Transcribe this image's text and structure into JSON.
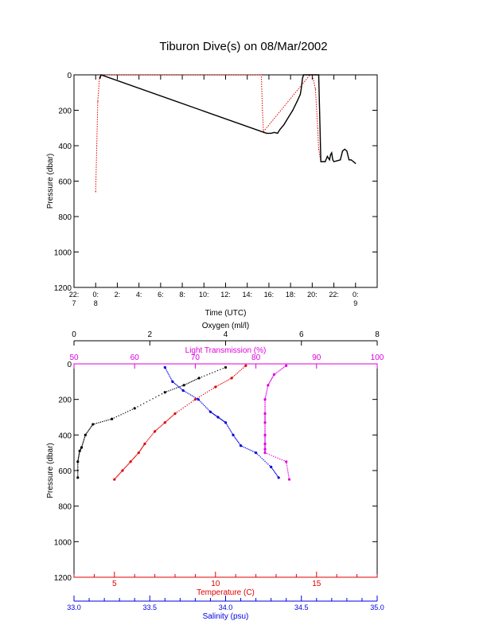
{
  "title": "Tiburon Dive(s) on 08/Mar/2002",
  "colors": {
    "axis": "#000000",
    "red": "#e00000",
    "blue": "#0000e0",
    "magenta": "#e000e0",
    "black": "#000000"
  },
  "chart_data": [
    {
      "type": "line",
      "title": "Tiburon Dive(s) on 08/Mar/2002",
      "xlabel": "Time (UTC)",
      "ylabel": "Pressure (dbar)",
      "xlim": [
        -2,
        26
      ],
      "ylim": [
        1200,
        0
      ],
      "xticks": [
        {
          "v": -2,
          "line1": "22:",
          "line2": "7"
        },
        {
          "v": 0,
          "line1": "0:",
          "line2": "8"
        },
        {
          "v": 2,
          "line1": "2:",
          "line2": ""
        },
        {
          "v": 4,
          "line1": "4:",
          "line2": ""
        },
        {
          "v": 6,
          "line1": "6:",
          "line2": ""
        },
        {
          "v": 8,
          "line1": "8:",
          "line2": ""
        },
        {
          "v": 10,
          "line1": "10:",
          "line2": ""
        },
        {
          "v": 12,
          "line1": "12:",
          "line2": ""
        },
        {
          "v": 14,
          "line1": "14:",
          "line2": ""
        },
        {
          "v": 16,
          "line1": "16:",
          "line2": ""
        },
        {
          "v": 18,
          "line1": "18:",
          "line2": ""
        },
        {
          "v": 20,
          "line1": "20:",
          "line2": ""
        },
        {
          "v": 22,
          "line1": "22:",
          "line2": ""
        },
        {
          "v": 24,
          "line1": "0:",
          "line2": "9"
        }
      ],
      "yticks": [
        0,
        200,
        400,
        600,
        800,
        1000,
        1200
      ],
      "series": [
        {
          "color": "red",
          "style": "dotted",
          "x": [
            0.0,
            0.1,
            0.2,
            0.35,
            0.5,
            4.0,
            8.0,
            12.0,
            15.0,
            15.3,
            15.4,
            15.5,
            19.8,
            20.0,
            20.3,
            20.5,
            20.6,
            20.8
          ],
          "y": [
            660,
            400,
            150,
            15,
            0,
            0,
            0,
            0,
            0,
            0,
            200,
            320,
            0,
            0,
            80,
            300,
            420,
            490
          ]
        },
        {
          "color": "black",
          "style": "solid",
          "x": [
            0.4,
            0.45,
            0.5,
            15.55,
            15.8,
            16.2,
            16.5,
            16.8,
            17.0,
            17.4,
            17.8,
            18.2,
            18.6,
            18.9,
            19.0,
            19.1,
            19.2,
            19.5,
            19.8,
            20.0,
            20.3,
            20.6,
            20.8,
            21.0,
            21.2,
            21.4,
            21.6,
            21.7,
            21.8,
            21.9,
            22.0,
            22.3,
            22.6,
            22.8,
            23.0,
            23.2,
            23.4,
            23.6,
            23.8,
            24.0
          ],
          "y": [
            20,
            10,
            0,
            325,
            330,
            330,
            325,
            330,
            310,
            280,
            240,
            200,
            150,
            110,
            70,
            20,
            0,
            0,
            0,
            0,
            0,
            0,
            490,
            490,
            490,
            460,
            480,
            450,
            440,
            480,
            490,
            485,
            480,
            430,
            420,
            430,
            480,
            480,
            490,
            500
          ]
        }
      ]
    },
    {
      "type": "scatter",
      "ylabel": "Pressure (dbar)",
      "ylim": [
        1200,
        0
      ],
      "yticks": [
        0,
        200,
        400,
        600,
        800,
        1000,
        1200
      ],
      "x_axes": {
        "oxygen": {
          "label": "Oxygen (ml/l)",
          "range": [
            0,
            8
          ],
          "ticks": [
            0,
            2,
            4,
            6,
            8
          ],
          "color": "black",
          "position": "top"
        },
        "light_transmission": {
          "label": "Light Transmission (%)",
          "range": [
            50,
            100
          ],
          "ticks": [
            50,
            60,
            70,
            80,
            90,
            100
          ],
          "color": "magenta",
          "position": "top"
        },
        "temperature": {
          "label": "Temperature (C)",
          "range": [
            3,
            18
          ],
          "ticks": [
            5,
            10,
            15
          ],
          "color": "red",
          "position": "bottom"
        },
        "salinity": {
          "label": "Salinity (psu)",
          "range": [
            33.0,
            35.0
          ],
          "ticks": [
            "33.0",
            "33.5",
            "34.0",
            "34.5",
            "35.0"
          ],
          "color": "blue",
          "position": "bottom"
        }
      },
      "series": [
        {
          "axis": "oxygen",
          "color": "black",
          "x": [
            4.0,
            3.3,
            2.9,
            2.4,
            1.6,
            1.0,
            0.5,
            0.3,
            0.2,
            0.15,
            0.1,
            0.1
          ],
          "y": [
            20,
            80,
            120,
            160,
            250,
            310,
            340,
            400,
            470,
            490,
            550,
            640
          ]
        },
        {
          "axis": "temperature",
          "color": "red",
          "x": [
            11.5,
            10.8,
            10.0,
            9.0,
            8.0,
            7.5,
            7.0,
            6.5,
            6.2,
            5.8,
            5.4,
            5.0
          ],
          "y": [
            10,
            80,
            130,
            200,
            280,
            330,
            380,
            450,
            500,
            550,
            600,
            650
          ]
        },
        {
          "axis": "salinity",
          "color": "blue",
          "x": [
            33.6,
            33.65,
            33.72,
            33.82,
            33.9,
            33.95,
            34.0,
            34.05,
            34.1,
            34.2,
            34.3,
            34.35
          ],
          "y": [
            20,
            100,
            150,
            200,
            270,
            300,
            330,
            400,
            460,
            500,
            580,
            640
          ]
        },
        {
          "axis": "light_transmission",
          "color": "magenta",
          "x": [
            85,
            83,
            82,
            81.5,
            81.5,
            81.5,
            81.5,
            81.5,
            81.5,
            81.5,
            85,
            85.5
          ],
          "y": [
            10,
            60,
            120,
            200,
            280,
            330,
            400,
            450,
            480,
            500,
            550,
            650
          ]
        }
      ]
    }
  ]
}
